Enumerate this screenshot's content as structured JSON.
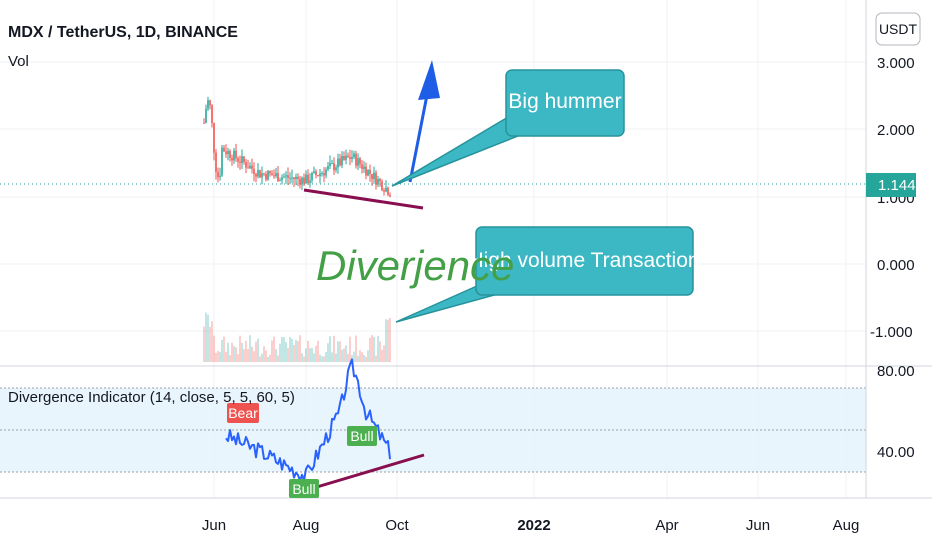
{
  "header": {
    "symbol_title": "MDX / TetherUS, 1D, BINANCE",
    "volume_label": "Vol",
    "currency_button": "USDT"
  },
  "price_scale": {
    "ticks": [
      "3.000",
      "2.000",
      "1.000",
      "0.000",
      "-1.000"
    ],
    "current_price": "1.144"
  },
  "indicator": {
    "title": "Divergence Indicator (14, close, 5, 5, 60, 5)",
    "ticks": [
      "80.00",
      "40.00"
    ],
    "bear_label": "Bear",
    "bull_labels": [
      "Bull",
      "Bull"
    ]
  },
  "time_axis": {
    "labels": [
      "Jun",
      "Aug",
      "Oct",
      "2022",
      "Apr",
      "Jun",
      "Aug"
    ]
  },
  "annotations": {
    "callout_top": "Big hummer",
    "callout_bottom": "High volume Transaction",
    "handwritten": "Diverjence"
  },
  "colors": {
    "up": "#26a69a",
    "down": "#ef5350",
    "rsi_line": "#2962ff",
    "rsi_band": "#e3f2fd",
    "trend_line": "#880e4f",
    "arrow": "#1e5ee6",
    "callout_fill": "#3cb8c4",
    "callout_border": "#27939b",
    "divergence_text": "#43a047",
    "bear_label": "#ef5350",
    "bull_label": "#4caf50",
    "price_tag": "#26a69a"
  },
  "chart_data": [
    {
      "type": "candlestick",
      "title": "MDX / TetherUS, 1D, BINANCE",
      "x_axis": [
        "Jun",
        "Aug",
        "Oct",
        "2022",
        "Apr",
        "Jun",
        "Aug"
      ],
      "ylim": [
        -1.5,
        3.3
      ],
      "current_price": 1.144,
      "close_series_monthly": [
        {
          "x": "May 2021",
          "y": 2.1
        },
        {
          "x": "Jun 2021",
          "y": 1.8
        },
        {
          "x": "Jul 2021",
          "y": 1.35
        },
        {
          "x": "Aug 2021",
          "y": 1.25
        },
        {
          "x": "Sep 2021",
          "y": 1.6
        },
        {
          "x": "Oct 2021",
          "y": 1.05
        }
      ]
    },
    {
      "type": "line",
      "title": "Divergence Indicator (14, close, 5, 5, 60, 5)",
      "ylim": [
        20,
        80
      ],
      "ticks": [
        80,
        40
      ],
      "band": [
        30,
        70
      ],
      "series": [
        {
          "name": "",
          "values": [
            {
              "x": "May 2021",
              "y": 57
            },
            {
              "x": "Jun 2021",
              "y": 50
            },
            {
              "x": "Jul 2021",
              "y": 40
            },
            {
              "x": "Aug 2021",
              "y": 28
            },
            {
              "x": "Sep 2021",
              "y": 70
            },
            {
              "x": "Oct 2021",
              "y": 38
            }
          ]
        }
      ],
      "signals": [
        "Bear",
        "Bull",
        "Bull"
      ]
    }
  ]
}
